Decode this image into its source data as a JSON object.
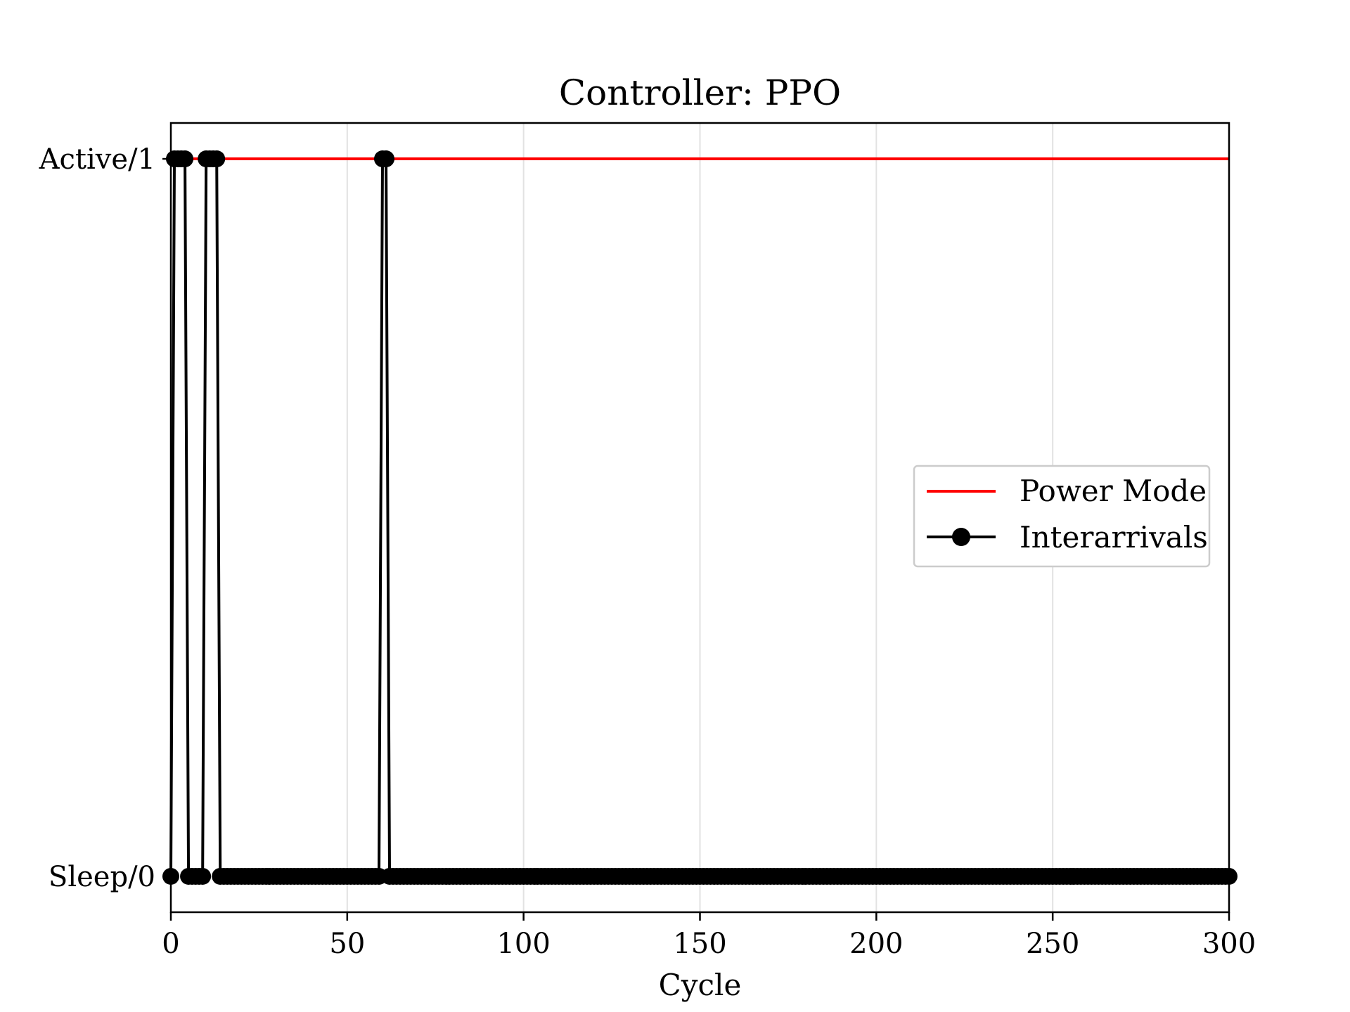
{
  "chart_data": {
    "type": "line",
    "title": "Controller: PPO",
    "xlabel": "Cycle",
    "ylabel": "",
    "xlim": [
      0,
      300
    ],
    "ylim": [
      -0.05,
      1.05
    ],
    "x_ticks": [
      0,
      50,
      100,
      150,
      200,
      250,
      300
    ],
    "y_ticks": [
      {
        "value": 0,
        "label": "Sleep/0"
      },
      {
        "value": 1,
        "label": "Active/1"
      }
    ],
    "grid": "x-major",
    "legend": "center-right",
    "series": [
      {
        "name": "Power Mode",
        "color": "#ff0000",
        "marker": "none",
        "x": [
          0,
          300
        ],
        "y": [
          1,
          1
        ]
      },
      {
        "name": "Interarrivals",
        "color": "#000000",
        "marker": "circle",
        "active_cycles": [
          1,
          2,
          3,
          4,
          10,
          11,
          12,
          13,
          60,
          61
        ],
        "x_start": 0,
        "x_end": 300
      }
    ]
  }
}
